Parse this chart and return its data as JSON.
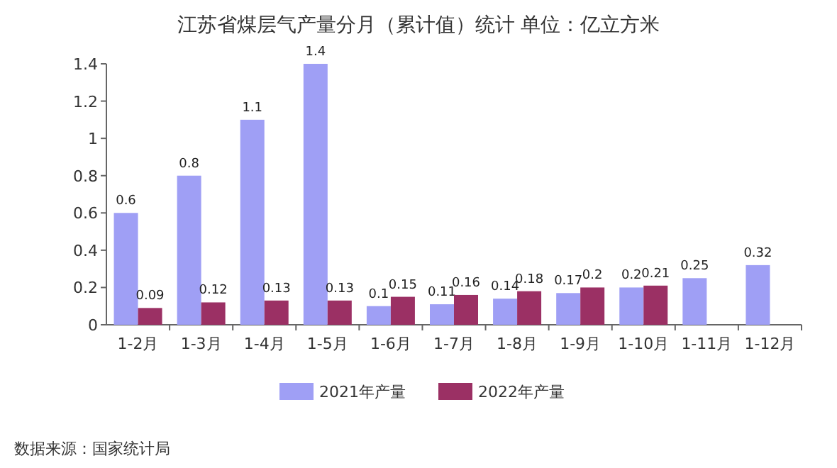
{
  "chart_data": {
    "type": "bar",
    "title": "江苏省煤层气产量分月（累计值）统计 单位：亿立方米",
    "categories": [
      "1-2月",
      "1-3月",
      "1-4月",
      "1-5月",
      "1-6月",
      "1-7月",
      "1-8月",
      "1-9月",
      "1-10月",
      "1-11月",
      "1-12月"
    ],
    "series": [
      {
        "name": "2021年产量",
        "color": "#9f9ff5",
        "values": [
          0.6,
          0.8,
          1.1,
          1.4,
          0.1,
          0.11,
          0.14,
          0.17,
          0.2,
          0.25,
          0.32
        ]
      },
      {
        "name": "2022年产量",
        "color": "#9b3064",
        "values": [
          0.09,
          0.12,
          0.13,
          0.13,
          0.15,
          0.16,
          0.18,
          0.2,
          0.21,
          null,
          null
        ]
      }
    ],
    "ylim": [
      0,
      1.4
    ],
    "yticks": [
      0,
      0.2,
      0.4,
      0.6,
      0.8,
      1,
      1.2,
      1.4
    ],
    "data_labels": true,
    "legend": "bottom",
    "grid": false,
    "annotations": [
      "数据来源：国家统计局"
    ]
  }
}
